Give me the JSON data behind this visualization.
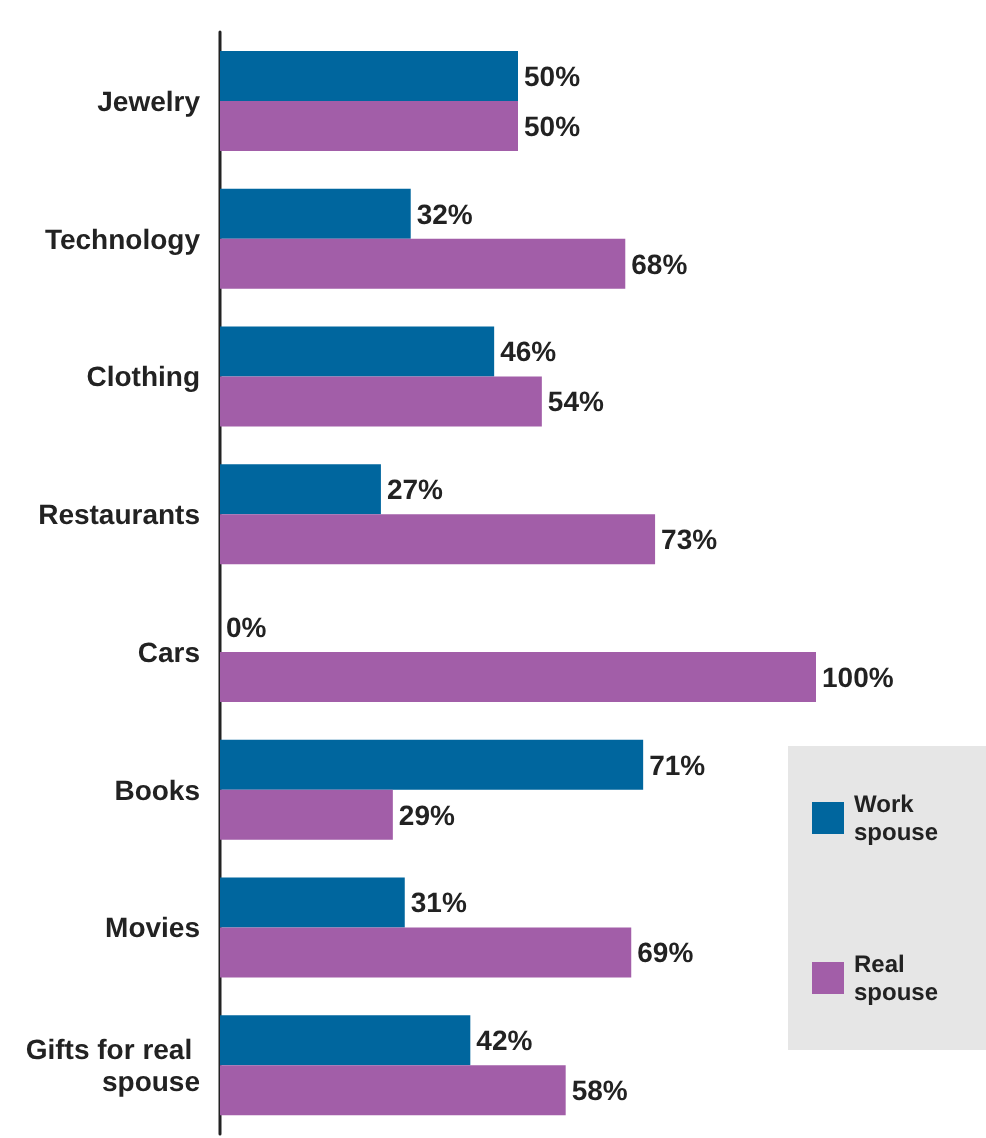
{
  "chart_data": {
    "type": "bar",
    "orientation": "horizontal",
    "categories": [
      "Jewelry",
      "Technology",
      "Clothing",
      "Restaurants",
      "Cars",
      "Books",
      "Movies",
      "Gifts for real spouse"
    ],
    "series": [
      {
        "name": "Work spouse",
        "color": "#00669e",
        "values": [
          50,
          32,
          46,
          27,
          0,
          71,
          31,
          42
        ],
        "value_labels": [
          "50%",
          "32%",
          "46%",
          "27%",
          "0%",
          "71%",
          "31%",
          "42%"
        ]
      },
      {
        "name": "Real spouse",
        "color": "#a25ea8",
        "values": [
          50,
          68,
          54,
          73,
          100,
          29,
          69,
          58
        ],
        "value_labels": [
          "50%",
          "68%",
          "54%",
          "73%",
          "100%",
          "29%",
          "69%",
          "58%"
        ]
      }
    ],
    "legend": "bottom right"
  }
}
